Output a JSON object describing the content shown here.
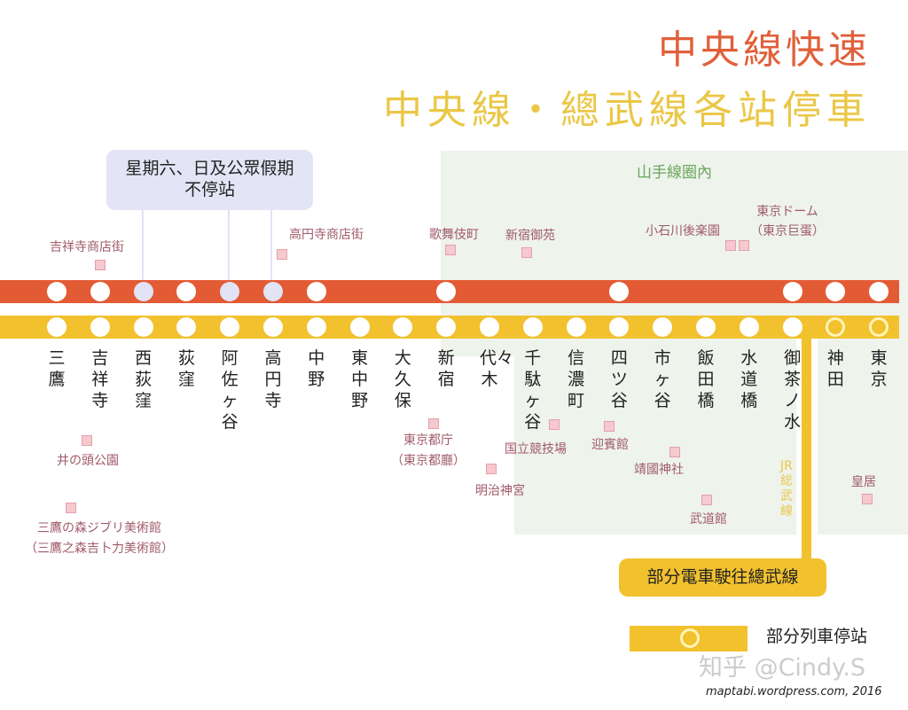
{
  "titles": {
    "rapid": "中央線快速",
    "local": "中央線・總武線各站停車"
  },
  "colors": {
    "rapid_line": "#e35b35",
    "local_line": "#f2c12e",
    "zone": "#eef3ec",
    "weekend_note": "#e3e5f6",
    "poi": "#f6c9cf"
  },
  "zone_label": "山手線圈內",
  "weekend_note": {
    "line1": "星期六、日及公眾假期",
    "line2": "不停站"
  },
  "stations": [
    {
      "name": "三鷹",
      "rapid": "stop",
      "local": "stop"
    },
    {
      "name": "吉祥寺",
      "rapid": "stop",
      "local": "stop"
    },
    {
      "name": "西荻窪",
      "rapid": "weekday-only",
      "local": "stop"
    },
    {
      "name": "荻窪",
      "rapid": "stop",
      "local": "stop"
    },
    {
      "name": "阿佐ヶ谷",
      "rapid": "weekday-only",
      "local": "stop"
    },
    {
      "name": "高円寺",
      "rapid": "weekday-only",
      "local": "stop"
    },
    {
      "name": "中野",
      "rapid": "stop",
      "local": "stop"
    },
    {
      "name": "東中野",
      "rapid": "none",
      "local": "stop"
    },
    {
      "name": "大久保",
      "rapid": "none",
      "local": "stop"
    },
    {
      "name": "新宿",
      "rapid": "stop",
      "local": "stop"
    },
    {
      "name": "代々木",
      "rapid": "none",
      "local": "stop"
    },
    {
      "name": "千駄ヶ谷",
      "rapid": "none",
      "local": "stop"
    },
    {
      "name": "信濃町",
      "rapid": "none",
      "local": "stop"
    },
    {
      "name": "四ツ谷",
      "rapid": "stop",
      "local": "stop"
    },
    {
      "name": "市ヶ谷",
      "rapid": "none",
      "local": "stop"
    },
    {
      "name": "飯田橋",
      "rapid": "none",
      "local": "stop"
    },
    {
      "name": "水道橋",
      "rapid": "none",
      "local": "stop"
    },
    {
      "name": "御茶ノ水",
      "rapid": "stop",
      "local": "stop"
    },
    {
      "name": "神田",
      "rapid": "stop",
      "local": "partial"
    },
    {
      "name": "東京",
      "rapid": "stop",
      "local": "partial"
    }
  ],
  "pois": [
    {
      "name": "吉祥寺商店街"
    },
    {
      "name": "高円寺商店街"
    },
    {
      "name": "歌舞伎町"
    },
    {
      "name": "新宿御苑"
    },
    {
      "name": "小石川後楽園"
    },
    {
      "name": "東京ドーム",
      "alt": "（東京巨蛋）"
    },
    {
      "name": "東京都庁",
      "alt": "（東京都廳）"
    },
    {
      "name": "国立競技場"
    },
    {
      "name": "迎賓館"
    },
    {
      "name": "明治神宮"
    },
    {
      "name": "靖國神社"
    },
    {
      "name": "武道館"
    },
    {
      "name": "皇居"
    },
    {
      "name": "井の頭公園"
    },
    {
      "name": "三鷹の森ジブリ美術館",
      "alt": "（三鷹之森吉卜力美術館）"
    }
  ],
  "sobu_label": "JR総武線",
  "sobu_note": "部分電車駛往總武線",
  "legend": {
    "partial_stop": "部分列車停站"
  },
  "credit": {
    "watermark": "知乎 @Cindy.S",
    "source": "maptabi.wordpress.com, 2016"
  }
}
